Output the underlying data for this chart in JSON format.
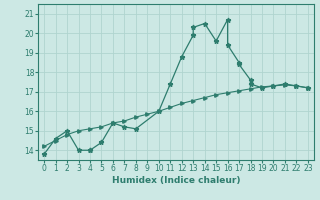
{
  "xlabel": "Humidex (Indice chaleur)",
  "bg_color": "#cce8e4",
  "line_color": "#2e7d6e",
  "grid_color": "#b0d4cf",
  "xlim": [
    -0.5,
    23.5
  ],
  "ylim": [
    13.5,
    21.5
  ],
  "xticks": [
    0,
    1,
    2,
    3,
    4,
    5,
    6,
    7,
    8,
    9,
    10,
    11,
    12,
    13,
    14,
    15,
    16,
    17,
    18,
    19,
    20,
    21,
    22,
    23
  ],
  "yticks": [
    14,
    15,
    16,
    17,
    18,
    19,
    20,
    21
  ],
  "line1_x": [
    0,
    1,
    2,
    3,
    4,
    4,
    5,
    6,
    7,
    8,
    10,
    11,
    12,
    13,
    13,
    14,
    15,
    16,
    16,
    17,
    17,
    18,
    18,
    19,
    20,
    21,
    22,
    23
  ],
  "line1_y": [
    13.8,
    14.6,
    15.0,
    14.0,
    14.0,
    14.0,
    14.4,
    15.4,
    15.2,
    15.1,
    16.0,
    17.4,
    18.8,
    19.9,
    20.3,
    20.5,
    19.6,
    20.7,
    19.4,
    18.5,
    18.4,
    17.6,
    17.4,
    17.2,
    17.3,
    17.4,
    17.3,
    17.2
  ],
  "line2_x": [
    0,
    1,
    2,
    3,
    4,
    5,
    6,
    7,
    8,
    9,
    10,
    11,
    12,
    13,
    14,
    15,
    16,
    17,
    18,
    19,
    20,
    21,
    22,
    23
  ],
  "line2_y": [
    14.2,
    14.5,
    14.8,
    15.0,
    15.1,
    15.2,
    15.4,
    15.5,
    15.7,
    15.85,
    16.0,
    16.2,
    16.4,
    16.55,
    16.7,
    16.85,
    16.95,
    17.05,
    17.15,
    17.25,
    17.3,
    17.35,
    17.3,
    17.2
  ]
}
